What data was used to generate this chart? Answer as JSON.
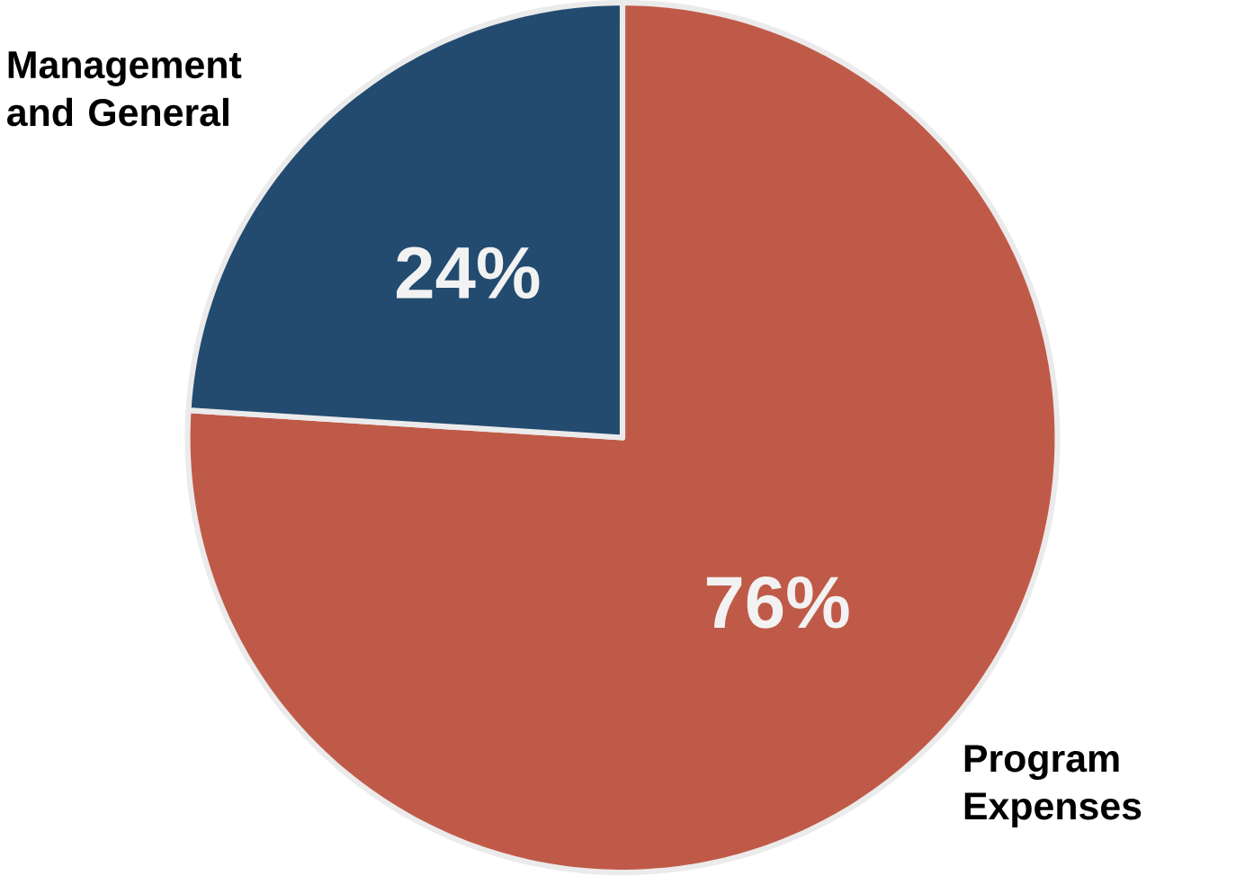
{
  "chart_data": {
    "type": "pie",
    "categories": [
      "Program Expenses",
      "Management and General"
    ],
    "values": [
      76,
      24
    ],
    "value_labels": [
      "76%",
      "24%"
    ],
    "colors": [
      "#c05a48",
      "#234b70"
    ]
  }
}
